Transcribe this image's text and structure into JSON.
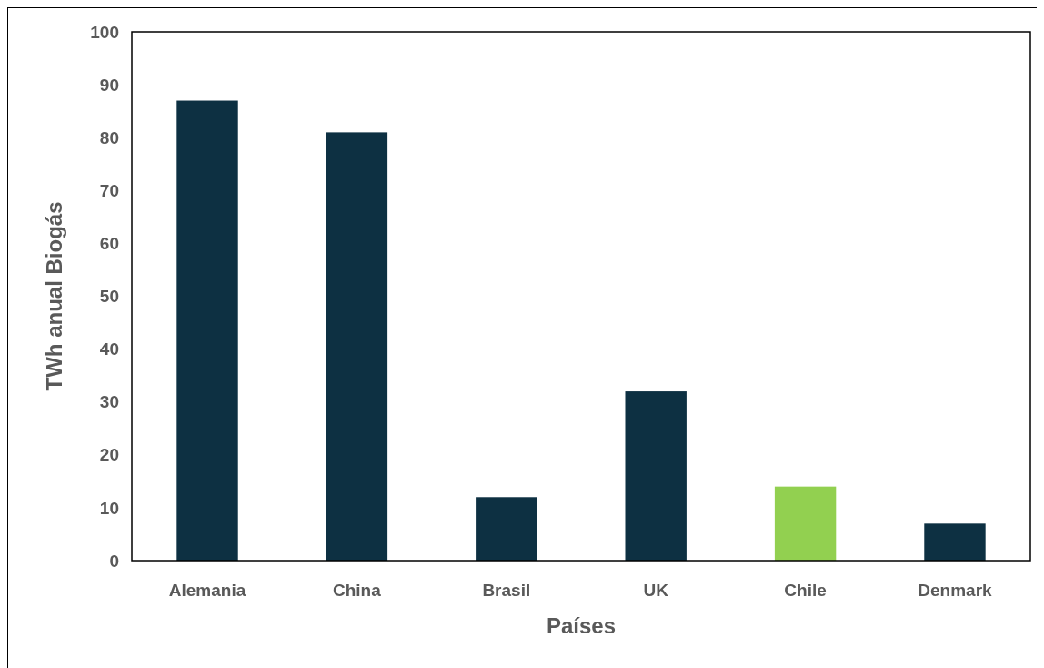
{
  "chart_data": {
    "type": "bar",
    "xlabel": "Países",
    "ylabel": "TWh anual Biogás",
    "categories": [
      "Alemania",
      "China",
      "Brasil",
      "UK",
      "Chile",
      "Denmark"
    ],
    "values": [
      87,
      81,
      12,
      32,
      14,
      7
    ],
    "colors": [
      "#0d3042",
      "#0d3042",
      "#0d3042",
      "#0d3042",
      "#92d050",
      "#0d3042"
    ],
    "ylim": [
      0,
      100
    ],
    "yticks": [
      0,
      10,
      20,
      30,
      40,
      50,
      60,
      70,
      80,
      90,
      100
    ],
    "grid": false
  }
}
